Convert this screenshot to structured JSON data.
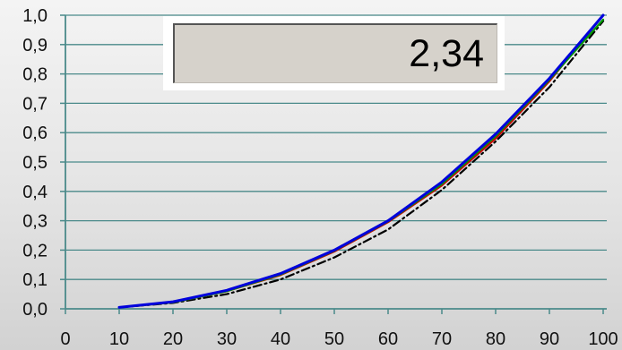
{
  "display": {
    "value": "2,34"
  },
  "chart_data": {
    "type": "line",
    "title": "",
    "xlabel": "",
    "ylabel": "",
    "xlim": [
      0,
      100
    ],
    "ylim": [
      0,
      1
    ],
    "grid": "horizontal",
    "legend": "none",
    "x_ticks": [
      "0",
      "10",
      "20",
      "30",
      "40",
      "50",
      "60",
      "70",
      "80",
      "90",
      "100"
    ],
    "y_ticks": [
      "0,0",
      "0,1",
      "0,2",
      "0,3",
      "0,4",
      "0,5",
      "0,6",
      "0,7",
      "0,8",
      "0,9",
      "1,0"
    ],
    "x": [
      10,
      20,
      30,
      40,
      50,
      60,
      70,
      80,
      90,
      100
    ],
    "series": [
      {
        "color": "#000000",
        "dash": "dashdot",
        "values": [
          0.005,
          0.02,
          0.05,
          0.1,
          0.175,
          0.27,
          0.405,
          0.57,
          0.755,
          0.98
        ]
      },
      {
        "color": "#cc0000",
        "values": [
          0.005,
          0.022,
          0.06,
          0.115,
          0.195,
          0.295,
          0.42,
          0.58,
          0.775,
          1.0
        ]
      },
      {
        "color": "#009900",
        "values": [
          0.005,
          0.022,
          0.06,
          0.117,
          0.198,
          0.298,
          0.425,
          0.588,
          0.78,
          0.985
        ]
      },
      {
        "color": "#0000dd",
        "values": [
          0.005,
          0.024,
          0.063,
          0.12,
          0.2,
          0.3,
          0.432,
          0.595,
          0.785,
          1.0
        ]
      }
    ],
    "colors": {
      "axis": "#4a8a8a",
      "grid": "#4a8a8a",
      "text": "#111111"
    }
  }
}
